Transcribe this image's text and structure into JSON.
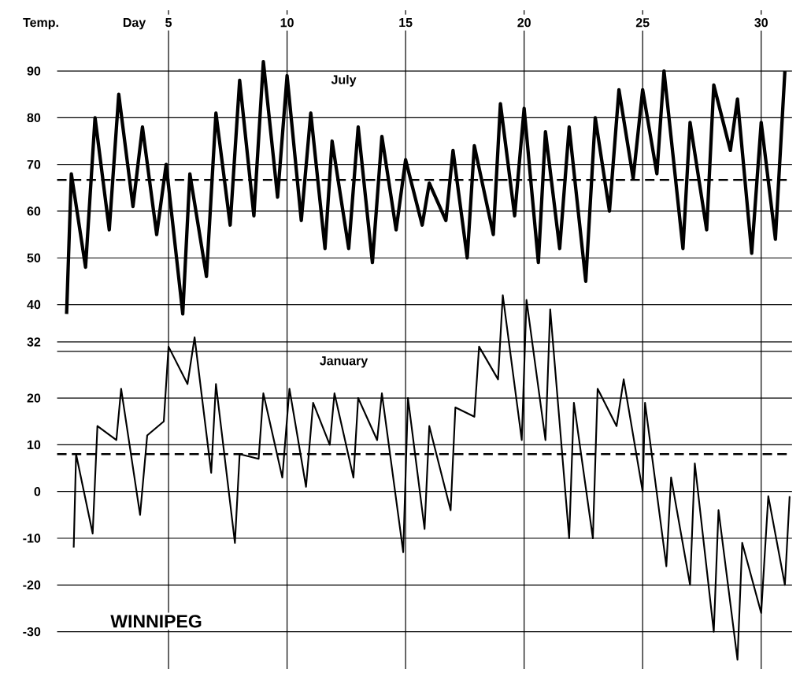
{
  "chart_data": {
    "type": "line",
    "title": "WINNIPEG",
    "xlabel": "Day",
    "ylabel": "Temp.",
    "annotations": [
      "July",
      "January"
    ],
    "xlim": [
      0.3,
      31.3
    ],
    "xticks": [
      5,
      10,
      15,
      20,
      25,
      30
    ],
    "ylim": [
      -38,
      103
    ],
    "yticks": [
      90,
      80,
      70,
      60,
      50,
      40,
      32,
      {
        "value": 30,
        "label": null
      },
      20,
      10,
      0,
      -10,
      -20,
      -30
    ],
    "grid": true,
    "marker": "none",
    "line_style": "solid",
    "ref_lines": [
      {
        "axis": "y",
        "value": 66.7,
        "line_style": "dashed"
      },
      {
        "axis": "y",
        "value": 8,
        "line_style": "dashed"
      }
    ],
    "series": [
      {
        "color": "#000000",
        "x": [
          0.7,
          0.9,
          1.5,
          1.9,
          2.5,
          2.9,
          3.5,
          3.9,
          4.5,
          4.9,
          5.6,
          5.9,
          6.6,
          7.0,
          7.6,
          8.0,
          8.6,
          9.0,
          9.6,
          10.0,
          10.6,
          11.0,
          11.6,
          11.9,
          12.6,
          13.0,
          13.6,
          14.0,
          14.6,
          15.0,
          15.7,
          16.0,
          16.7,
          17.0,
          17.6,
          17.9,
          18.7,
          19.0,
          19.6,
          20.0,
          20.6,
          20.9,
          21.5,
          21.9,
          22.6,
          23.0,
          23.6,
          24.0,
          24.6,
          25.0,
          25.6,
          25.9,
          26.7,
          27.0,
          27.7,
          28.0,
          28.7,
          29.0,
          29.6,
          30.0,
          30.6,
          31.0
        ],
        "values": [
          38,
          68,
          48,
          80,
          56,
          85,
          61,
          78,
          55,
          70,
          38,
          68,
          46,
          81,
          57,
          88,
          59,
          92,
          63,
          89,
          58,
          81,
          52,
          75,
          52,
          78,
          49,
          76,
          56,
          71,
          57,
          66,
          58,
          73,
          50,
          74,
          55,
          83,
          59,
          82,
          49,
          77,
          52,
          78,
          45,
          80,
          60,
          86,
          67,
          86,
          68,
          90,
          52,
          79,
          56,
          87,
          73,
          84,
          51,
          79,
          54,
          90
        ]
      },
      {
        "color": "#000000",
        "x": [
          1.0,
          1.1,
          1.8,
          2.0,
          2.8,
          3.0,
          3.8,
          4.1,
          4.8,
          5.0,
          5.8,
          6.1,
          6.8,
          7.0,
          7.8,
          8.0,
          8.8,
          9.0,
          9.8,
          10.1,
          10.8,
          11.1,
          11.8,
          12.0,
          12.8,
          13.0,
          13.8,
          14.0,
          14.9,
          15.1,
          15.8,
          16.0,
          16.9,
          17.1,
          17.9,
          18.1,
          18.9,
          19.1,
          19.9,
          20.1,
          20.9,
          21.1,
          21.9,
          22.1,
          22.9,
          23.1,
          23.9,
          24.2,
          25.0,
          25.1,
          26.0,
          26.2,
          27.0,
          27.2,
          28.0,
          28.2,
          29.0,
          29.2,
          30.0,
          30.3,
          31.0,
          31.2
        ],
        "values": [
          -12,
          8,
          -9,
          14,
          11,
          22,
          -5,
          12,
          15,
          31,
          23,
          33,
          4,
          23,
          -11,
          8,
          7,
          21,
          3,
          22,
          1,
          19,
          10,
          21,
          3,
          20,
          11,
          21,
          -13,
          20,
          -8,
          14,
          -4,
          18,
          16,
          31,
          24,
          42,
          11,
          41,
          11,
          39,
          -10,
          19,
          -10,
          22,
          14,
          24,
          0,
          19,
          -16,
          3,
          -20,
          6,
          -30,
          -4,
          -36,
          -11,
          -26,
          -1,
          -20,
          -1
        ]
      }
    ]
  }
}
